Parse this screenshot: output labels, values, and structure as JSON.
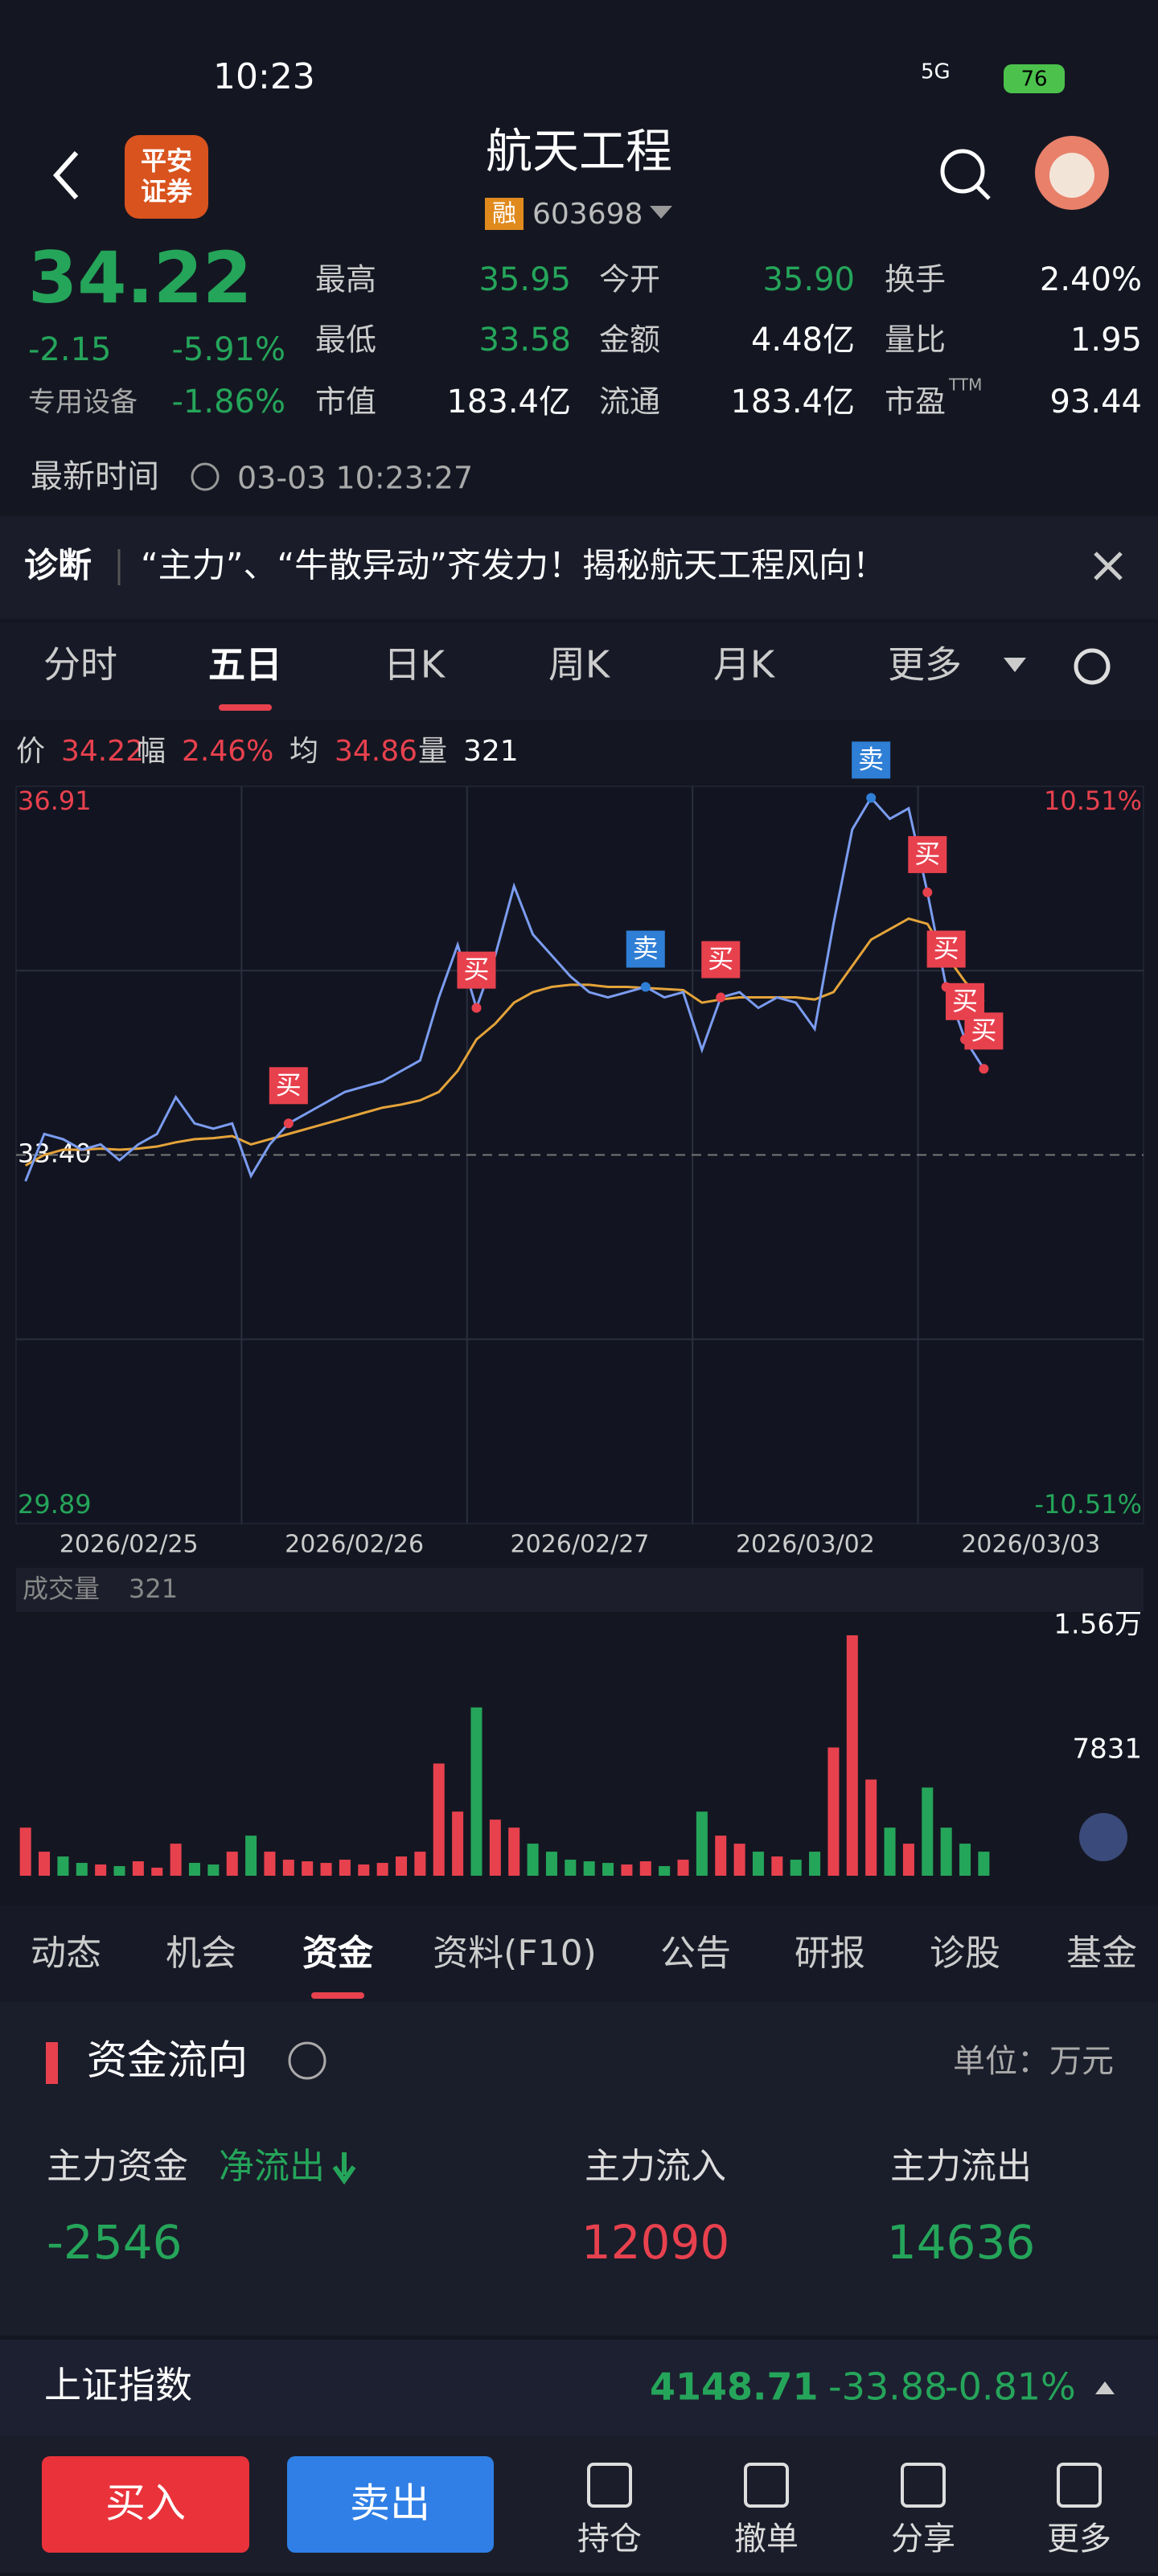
{
  "status_bar": {
    "time": "10:23",
    "network": "5G",
    "battery": "76"
  },
  "header": {
    "logo": [
      "平安",
      "证券"
    ],
    "title": "航天工程",
    "badge": "融",
    "code": "603698"
  },
  "quote": {
    "price": "34.22",
    "change": "-2.15",
    "change_pct": "-5.91%",
    "sector": "专用设备",
    "sector_pct": "-1.86%",
    "stats": [
      {
        "label": "最高",
        "value": "35.95",
        "color": "#25a55a"
      },
      {
        "label": "今开",
        "value": "35.90",
        "color": "#25a55a"
      },
      {
        "label": "换手",
        "value": "2.40%",
        "color": "#ffffff"
      },
      {
        "label": "最低",
        "value": "33.58",
        "color": "#25a55a"
      },
      {
        "label": "金额",
        "value": "4.48亿",
        "color": "#ffffff"
      },
      {
        "label": "量比",
        "value": "1.95",
        "color": "#ffffff"
      },
      {
        "label": "市值",
        "value": "183.4亿",
        "color": "#ffffff"
      },
      {
        "label": "流通",
        "value": "183.4亿",
        "color": "#ffffff"
      },
      {
        "label": "市盈",
        "value": "93.44",
        "color": "#ffffff",
        "label_sup": "TTM"
      }
    ],
    "update_label": "最新时间",
    "update_time": "03-03 10:23:27"
  },
  "diagnosis": {
    "label": "诊断",
    "text": "“主力”、“牛散异动”齐发力！揭秘航天工程风向！"
  },
  "chart_tabs": {
    "items": [
      "分时",
      "五日",
      "日K",
      "周K",
      "月K",
      "更多"
    ],
    "active": 1
  },
  "chart_info": [
    {
      "label": "价",
      "value": "34.22"
    },
    {
      "label": "幅",
      "value": "2.46%"
    },
    {
      "label": "均",
      "value": "34.86"
    },
    {
      "label": "量",
      "value": "321"
    }
  ],
  "intraday": {
    "type": "line",
    "ylim": [
      29.89,
      36.91
    ],
    "yticks": [
      36.91,
      {
        "value": 33.4,
        "label": "33.40"
      },
      29.89
    ],
    "ytick_colors": [
      "#e8414e",
      "#ffffff",
      "#25a55a"
    ],
    "pct_labels": [
      "10.51%",
      "-10.51%"
    ],
    "price_color": "#7b9cf0",
    "avg_color": "#e5a33a",
    "up_color": "#e8414e",
    "down_color": "#25a55a",
    "volume_ylim": [
      0,
      15600
    ],
    "volume_ticks": [
      {
        "value": 15600,
        "label": "1.56万"
      },
      7831
    ],
    "days": [
      {
        "date": "2026/02/25",
        "price": [
          33.15,
          33.6,
          33.55,
          33.45,
          33.5,
          33.35,
          33.5,
          33.6,
          33.95,
          33.7,
          33.65,
          33.7
        ],
        "avg": [
          33.3,
          33.4,
          33.45,
          33.45,
          33.46,
          33.45,
          33.46,
          33.48,
          33.52,
          33.55,
          33.56,
          33.58
        ],
        "volume": [
          3000,
          1500,
          1200,
          800,
          700,
          600,
          900,
          500,
          2000,
          800,
          700,
          1500
        ],
        "signals": [
          null,
          null,
          null,
          null,
          null,
          null,
          null,
          null,
          null,
          null,
          null,
          null
        ]
      },
      {
        "date": "2026/02/26",
        "price": [
          33.2,
          33.5,
          33.7,
          33.8,
          33.9,
          34.0,
          34.05,
          34.1,
          34.2,
          34.3,
          34.9,
          35.4
        ],
        "avg": [
          33.5,
          33.55,
          33.6,
          33.65,
          33.7,
          33.75,
          33.8,
          33.85,
          33.88,
          33.92,
          34.0,
          34.2
        ],
        "volume": [
          2500,
          1500,
          1000,
          900,
          800,
          1000,
          700,
          800,
          1200,
          1500,
          7000,
          4000
        ],
        "signals": [
          null,
          null,
          {
            "text": "买",
            "color": "#e8414e"
          },
          null,
          null,
          null,
          null,
          null,
          null,
          null,
          null,
          null
        ]
      },
      {
        "date": "2026/02/27",
        "price": [
          34.8,
          35.3,
          35.96,
          35.5,
          35.3,
          35.1,
          34.95,
          34.9,
          34.95,
          35.0,
          34.9,
          34.95
        ],
        "avg": [
          34.5,
          34.65,
          34.85,
          34.95,
          35.0,
          35.02,
          35.02,
          35.0,
          35.0,
          34.99,
          34.98,
          34.97
        ],
        "volume": [
          10500,
          3500,
          3000,
          2000,
          1500,
          1000,
          900,
          800,
          700,
          900,
          600,
          1000
        ],
        "signals": [
          {
            "text": "买",
            "color": "#e8414e"
          },
          null,
          null,
          null,
          null,
          null,
          null,
          null,
          null,
          {
            "text": "卖",
            "color": "#2f7fd6"
          },
          null,
          null
        ]
      },
      {
        "date": "2026/03/02",
        "price": [
          34.4,
          34.9,
          34.95,
          34.8,
          34.9,
          34.85,
          34.6,
          35.6,
          36.5,
          36.8,
          36.6,
          36.7
        ],
        "avg": [
          34.85,
          34.88,
          34.9,
          34.9,
          34.9,
          34.9,
          34.88,
          34.95,
          35.2,
          35.45,
          35.55,
          35.65
        ],
        "volume": [
          4000,
          2500,
          2000,
          1500,
          1200,
          1000,
          1500,
          8000,
          15000,
          6000,
          3000,
          2000
        ],
        "signals": [
          null,
          {
            "text": "买",
            "color": "#e8414e"
          },
          null,
          null,
          null,
          null,
          null,
          null,
          null,
          {
            "text": "卖",
            "color": "#2f7fd6"
          },
          null,
          null
        ]
      },
      {
        "date": "2026/03/03",
        "price": [
          35.9,
          35.0,
          34.5,
          34.22
        ],
        "avg": [
          35.6,
          35.3,
          35.05,
          34.86
        ],
        "volume": [
          5500,
          3000,
          2000,
          1500
        ],
        "signals": [
          {
            "text": "买",
            "color": "#e8414e"
          },
          {
            "text": "买",
            "color": "#e8414e"
          },
          {
            "text": "买",
            "color": "#e8414e"
          },
          {
            "text": "买",
            "color": "#e8414e"
          }
        ]
      }
    ]
  },
  "volume_header": {
    "label": "成交量",
    "value": "321"
  },
  "info_tabs": {
    "items": [
      "动态",
      "机会",
      "资金",
      "资料(F10)",
      "公告",
      "研报",
      "诊股",
      "基金"
    ],
    "active": 2
  },
  "fund_flow": {
    "title": "资金流向",
    "unit": "单位：万元",
    "main_label": "主力资金",
    "direction": "净流出",
    "net": "-2546",
    "inflow_label": "主力流入",
    "inflow": "12090",
    "outflow_label": "主力流出",
    "outflow": "14636"
  },
  "index": {
    "name": "上证指数",
    "value": "4148.71",
    "change": "-33.88",
    "change_pct": "-0.81%"
  },
  "bottom_bar": {
    "buy": "买入",
    "sell": "卖出",
    "items": [
      "持仓",
      "撤单",
      "分享",
      "更多"
    ]
  }
}
